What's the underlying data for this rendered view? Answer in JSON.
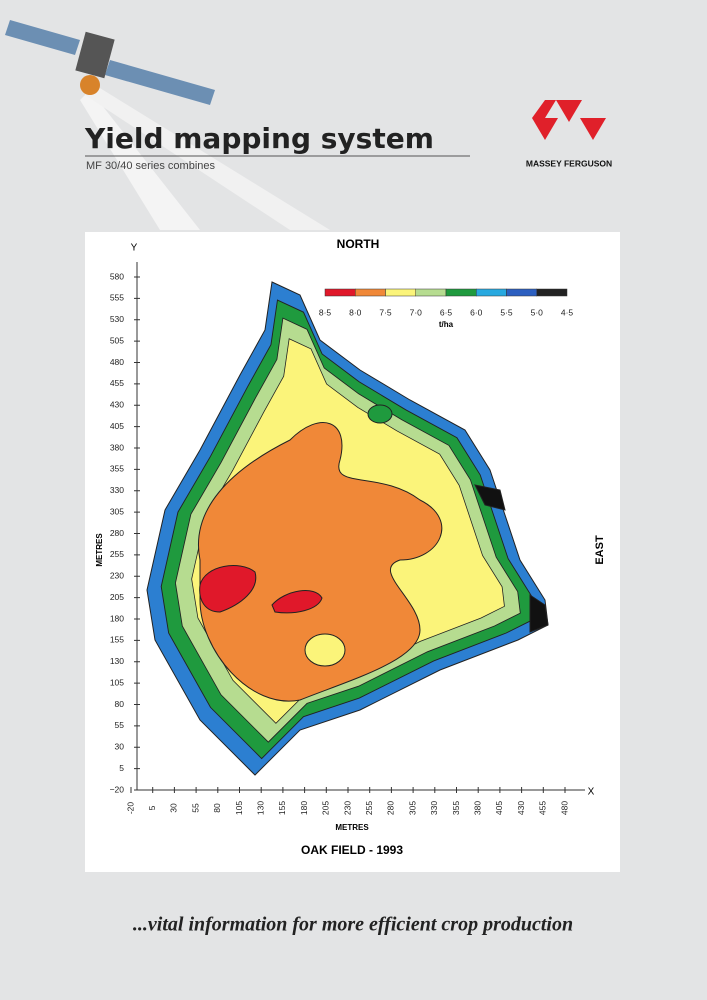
{
  "header": {
    "title": "Yield mapping system",
    "subtitle": "MF 30/40 series combines"
  },
  "brand": {
    "name": "MASSEY FERGUSON"
  },
  "map": {
    "north": "NORTH",
    "east": "EAST",
    "y_axis": "Y",
    "x_axis": "X",
    "y_axis_title": "METRES",
    "x_axis_title": "METRES",
    "yticks": [
      "580",
      "555",
      "530",
      "505",
      "480",
      "455",
      "430",
      "405",
      "380",
      "355",
      "330",
      "305",
      "280",
      "255",
      "230",
      "205",
      "180",
      "155",
      "130",
      "105",
      "80",
      "55",
      "30",
      "5",
      "−20"
    ],
    "xticks": [
      "-20",
      "5",
      "30",
      "55",
      "80",
      "105",
      "130",
      "155",
      "180",
      "205",
      "230",
      "255",
      "280",
      "305",
      "330",
      "355",
      "380",
      "405",
      "430",
      "455",
      "480"
    ],
    "legend": {
      "labels": [
        "8·5",
        "8·0",
        "7·5",
        "7·0",
        "6·5",
        "6·0",
        "5·5",
        "5·0",
        "4·5"
      ],
      "unit": "t/ha"
    },
    "caption": "OAK FIELD - 1993"
  },
  "footer": {
    "tagline": "...vital information for more efficient crop production"
  }
}
